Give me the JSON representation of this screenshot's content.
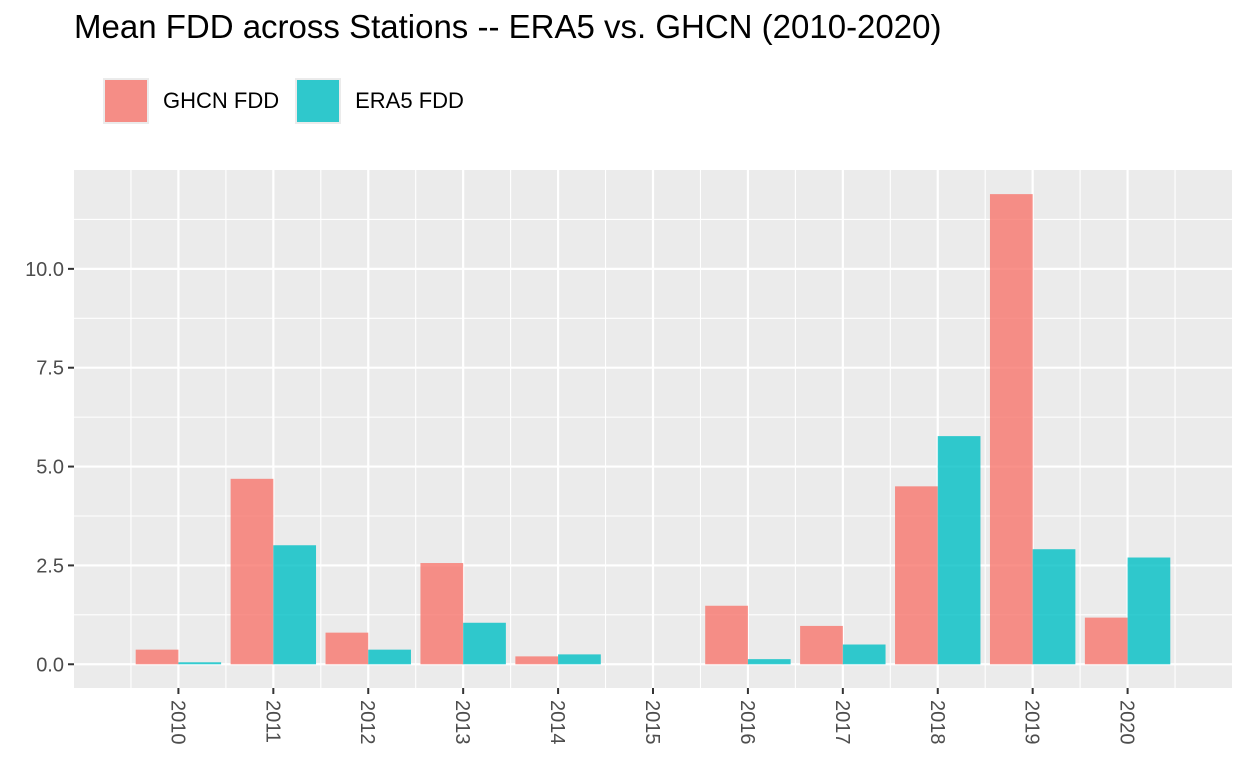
{
  "chart_data": {
    "type": "bar",
    "title": "Mean FDD across Stations -- ERA5 vs. GHCN (2010-2020)",
    "xlabel": "",
    "ylabel": "",
    "categories": [
      "2010",
      "2011",
      "2012",
      "2013",
      "2014",
      "2015",
      "2016",
      "2017",
      "2018",
      "2019",
      "2020"
    ],
    "series": [
      {
        "name": "GHCN FDD",
        "color": "#F8766D",
        "values": [
          0.37,
          4.69,
          0.8,
          2.56,
          0.2,
          0.0,
          1.48,
          0.97,
          4.5,
          11.89,
          1.18
        ]
      },
      {
        "name": "ERA5 FDD",
        "color": "#00BFC4",
        "values": [
          0.05,
          3.01,
          0.37,
          1.05,
          0.25,
          0.0,
          0.13,
          0.5,
          5.77,
          2.91,
          2.7
        ]
      }
    ],
    "yticks": [
      "0.0",
      "2.5",
      "5.0",
      "7.5",
      "10.0"
    ],
    "ylim": [
      -0.6,
      12.5
    ],
    "grid": true,
    "legend_position": "top-left",
    "x_tick_rotation": "vertical"
  }
}
